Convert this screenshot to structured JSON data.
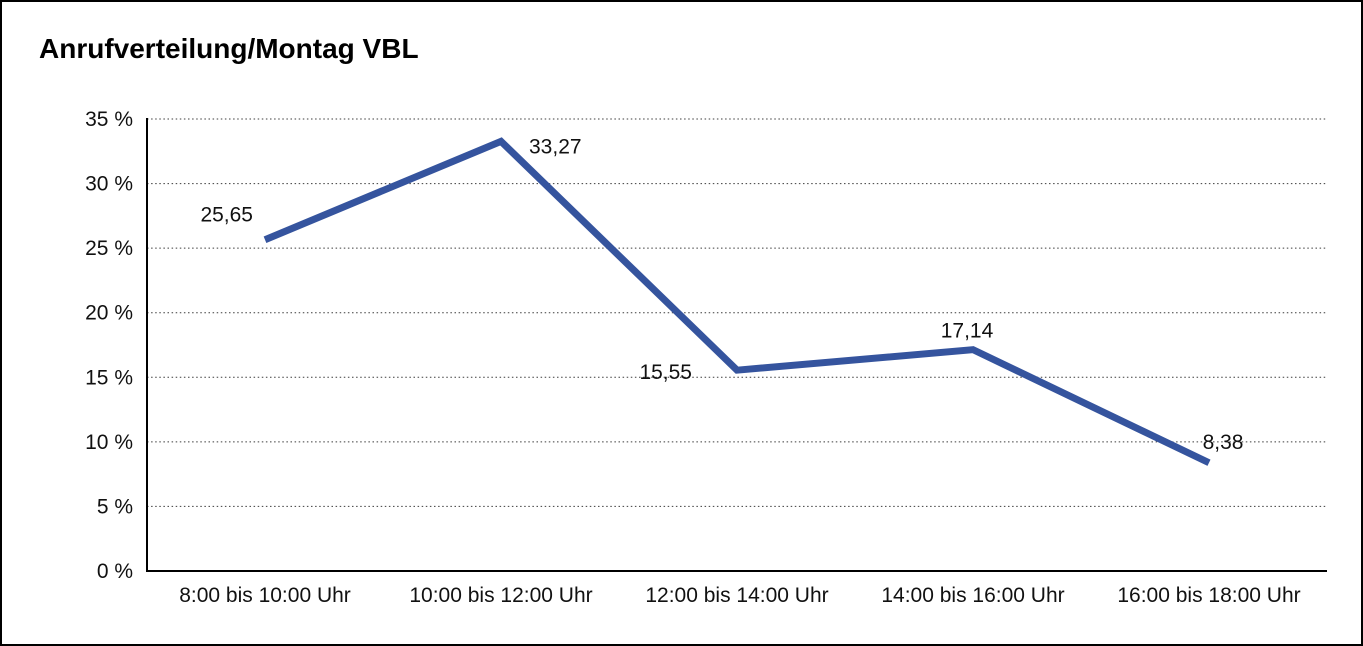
{
  "title": "Anrufverteilung/Montag VBL",
  "colors": {
    "line": "#35549E",
    "grid": "#3c3c3c",
    "axis": "#000000",
    "text": "#111111",
    "background": "#ffffff",
    "border": "#000000"
  },
  "chart_data": {
    "type": "line",
    "title": "Anrufverteilung/Montag VBL",
    "categories": [
      "8:00 bis 10:00 Uhr",
      "10:00 bis 12:00 Uhr",
      "12:00 bis 14:00 Uhr",
      "14:00 bis 16:00 Uhr",
      "16:00 bis 18:00 Uhr"
    ],
    "values": [
      25.65,
      33.27,
      15.55,
      17.14,
      8.38
    ],
    "point_labels": [
      "25,65",
      "33,27",
      "15,55",
      "17,14",
      "8,38"
    ],
    "y_tick_labels": [
      "0 %",
      "5 %",
      "10 %",
      "15 %",
      "20 %",
      "25 %",
      "30 %",
      "35 %"
    ],
    "ylim": [
      0,
      35
    ],
    "y_tick_step": 5,
    "xlabel": "",
    "ylabel": "",
    "grid": "horizontal-dotted",
    "legend": "none",
    "line_color": "#35549E"
  }
}
